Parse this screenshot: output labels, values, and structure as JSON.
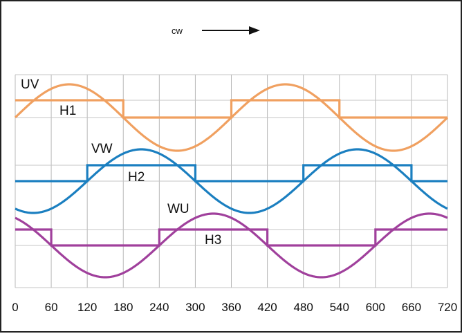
{
  "chart_data": {
    "type": "line",
    "title": "",
    "direction_label": "cw",
    "x_ticks": [
      0,
      60,
      120,
      180,
      240,
      300,
      360,
      420,
      480,
      540,
      600,
      660,
      720
    ],
    "xlim": [
      0,
      720
    ],
    "grid": true,
    "series": [
      {
        "name": "UV",
        "color": "#f0a060",
        "type": "sine",
        "phase_deg": 0
      },
      {
        "name": "H1",
        "color": "#f0a060",
        "type": "square",
        "high_intervals": [
          [
            0,
            180
          ],
          [
            360,
            540
          ]
        ]
      },
      {
        "name": "VW",
        "color": "#1b7fc0",
        "type": "sine",
        "phase_deg": 120
      },
      {
        "name": "H2",
        "color": "#1b7fc0",
        "type": "square",
        "high_intervals": [
          [
            120,
            300
          ],
          [
            480,
            660
          ]
        ]
      },
      {
        "name": "WU",
        "color": "#a0409c",
        "type": "sine",
        "phase_deg": 240
      },
      {
        "name": "H3",
        "color": "#a0409c",
        "type": "square",
        "high_intervals": [
          [
            240,
            420
          ],
          [
            600,
            720
          ]
        ],
        "initial_high_interval": [
          0,
          60
        ]
      }
    ]
  }
}
